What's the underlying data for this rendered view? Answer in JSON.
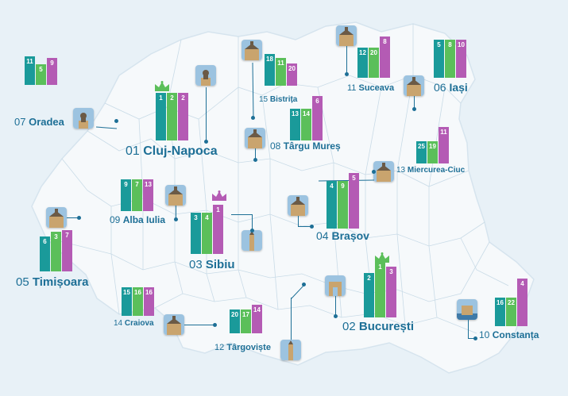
{
  "colors": {
    "background": "#e8f1f7",
    "land": "#f6f9fb",
    "border": "#c3d7e4",
    "bar1": "#1a9a9a",
    "bar2": "#5bbf5a",
    "bar3": "#b45bb4",
    "label": "#1d6f96",
    "crown": "#5bbf5a",
    "crown_rank1": "#b45bb4"
  },
  "cities": [
    {
      "id": "oradea",
      "rank": "07",
      "name": "Oradea",
      "values": [
        "11",
        "5",
        "9"
      ],
      "photo_icon": "oradea-statue-photo"
    },
    {
      "id": "cluj-napoca",
      "rank": "01",
      "name": "Cluj-Napoca",
      "values": [
        "1",
        "2",
        "2"
      ],
      "photo_icon": "cluj-statue-photo"
    },
    {
      "id": "bistrita",
      "rank": "15",
      "name": "Bistrița",
      "values": [
        "18",
        "11",
        "20"
      ],
      "photo_icon": "bistrita-church-photo"
    },
    {
      "id": "suceava",
      "rank": "11",
      "name": "Suceava",
      "values": [
        "12",
        "20",
        "8"
      ],
      "photo_icon": "suceava-monastery-photo"
    },
    {
      "id": "iasi",
      "rank": "06",
      "name": "Iași",
      "values": [
        "5",
        "8",
        "10"
      ],
      "photo_icon": "iasi-palace-photo"
    },
    {
      "id": "targu-mures",
      "rank": "08",
      "name": "Târgu Mureș",
      "values": [
        "13",
        "14",
        "6"
      ],
      "photo_icon": "targu-mures-palace-photo"
    },
    {
      "id": "miercurea-ciuc",
      "rank": "13",
      "name": "Miercurea-Ciuc",
      "values": [
        "25",
        "19",
        "11"
      ],
      "photo_icon": "miercurea-ciuc-castle-photo"
    },
    {
      "id": "alba-iulia",
      "rank": "09",
      "name": "Alba Iulia",
      "values": [
        "9",
        "7",
        "13"
      ],
      "photo_icon": "alba-iulia-cathedral-photo"
    },
    {
      "id": "sibiu",
      "rank": "03",
      "name": "Sibiu",
      "values": [
        "3",
        "4",
        "1"
      ],
      "photo_icon": "sibiu-tower-photo"
    },
    {
      "id": "brasov",
      "rank": "04",
      "name": "Brașov",
      "values": [
        "4",
        "9",
        "5"
      ],
      "photo_icon": "brasov-church-photo"
    },
    {
      "id": "timisoara",
      "rank": "05",
      "name": "Timișoara",
      "values": [
        "6",
        "3",
        "7"
      ],
      "photo_icon": "timisoara-cathedral-photo"
    },
    {
      "id": "craiova",
      "rank": "14",
      "name": "Craiova",
      "values": [
        "15",
        "16",
        "16"
      ],
      "photo_icon": "craiova-palace-photo"
    },
    {
      "id": "targoviste",
      "rank": "12",
      "name": "Târgoviște",
      "values": [
        "20",
        "17",
        "14"
      ],
      "photo_icon": "targoviste-tower-photo"
    },
    {
      "id": "bucuresti",
      "rank": "02",
      "name": "București",
      "values": [
        "2",
        "1",
        "3"
      ],
      "photo_icon": "arc-de-triomphe-photo"
    },
    {
      "id": "constanta",
      "rank": "10",
      "name": "Constanța",
      "values": [
        "16",
        "22",
        "4"
      ],
      "photo_icon": "constanta-casino-photo"
    }
  ]
}
